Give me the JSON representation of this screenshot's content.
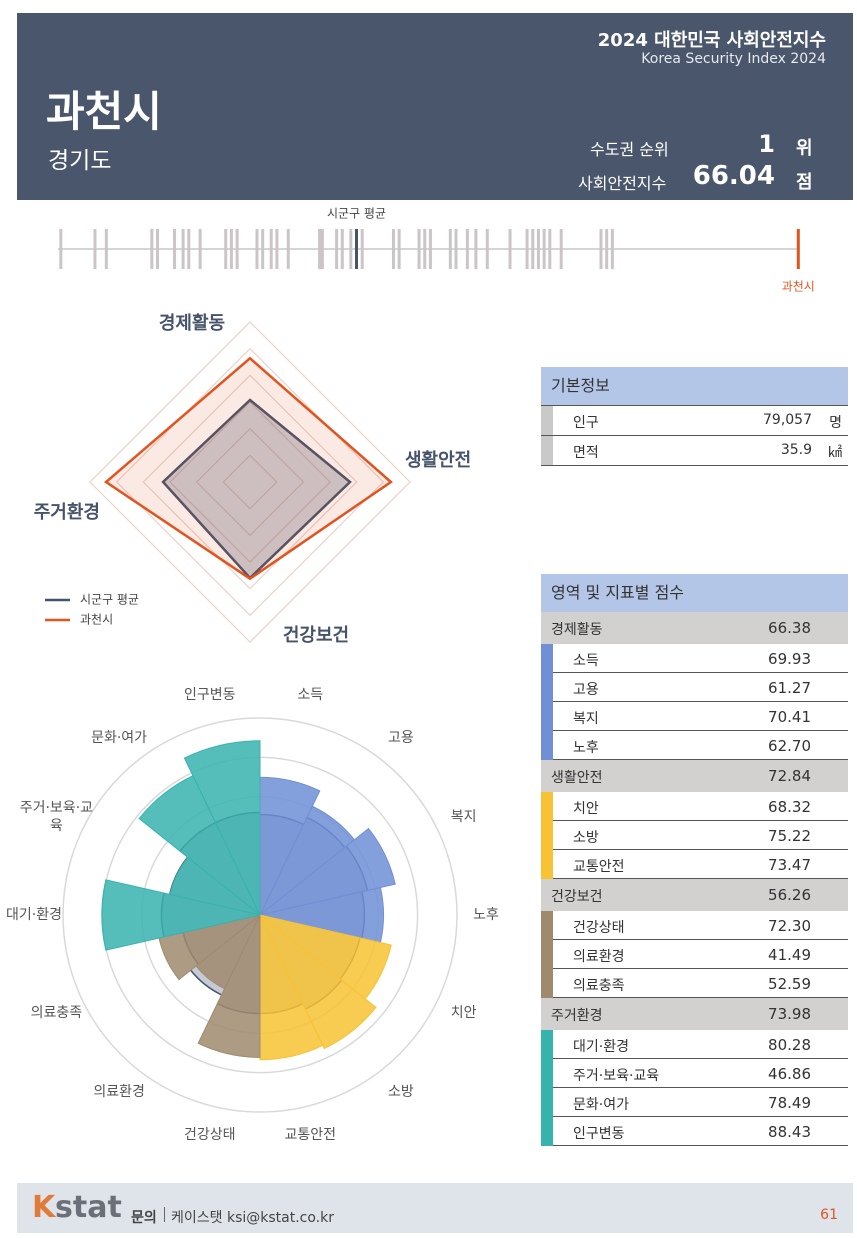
{
  "header": {
    "index_title": "2024 대한민국 사회안전지수",
    "index_subtitle": "Korea Security Index 2024",
    "city": "과천시",
    "province": "경기도",
    "rank_label": "수도권 순위",
    "rank": 1,
    "rank_unit": "위",
    "score_label": "사회안전지수",
    "score": 66.04,
    "score_unit": "점"
  },
  "ranking_strip": {
    "type": "strip",
    "xlim": [
      40,
      66.1
    ],
    "average_label": "시군구 평균",
    "average": 50.5,
    "average_color": "#46536b",
    "highlight_label": "과천시",
    "highlight": 66.04,
    "highlight_color": "#e2541f",
    "others_color": "#cbc5c8",
    "others": [
      40.1,
      41.3,
      41.7,
      43.3,
      43.5,
      44.1,
      44.4,
      44.6,
      45.0,
      45.9,
      46.1,
      46.3,
      47.0,
      47.2,
      47.5,
      47.7,
      48.1,
      49.2,
      49.3,
      49.8,
      50.0,
      50.3,
      50.7,
      51.8,
      52.0,
      52.7,
      52.9,
      53.1,
      53.8,
      54.0,
      54.4,
      54.7,
      55.1,
      55.9,
      56.5,
      56.7,
      56.9,
      57.1,
      57.3,
      57.7,
      59.1,
      59.3,
      59.5
    ]
  },
  "radar": {
    "type": "radar",
    "categories": [
      "경제활동",
      "생활안전",
      "건강보건",
      "주거환경"
    ],
    "rlim": [
      20,
      80
    ],
    "rticks": [
      20,
      30,
      40,
      50,
      60,
      70,
      80
    ],
    "series": [
      {
        "name": "시군구 평균",
        "color": "#46536b",
        "values": [
          50.75,
          57.5,
          56,
          52.6
        ]
      },
      {
        "name": "과천시",
        "color": "#e2541f",
        "values": [
          66.38,
          72.84,
          56.26,
          73.98
        ]
      }
    ]
  },
  "polar": {
    "type": "polar-bar",
    "categories": [
      "소득",
      "고용",
      "복지",
      "노후",
      "치안",
      "소방",
      "교통안전",
      "건강상태",
      "의료환경",
      "의료충족",
      "대기·환경",
      "주거·보육·교육",
      "문화·여가",
      "인구변동"
    ],
    "values": [
      69.93,
      61.27,
      70.41,
      62.7,
      68.32,
      75.22,
      73.47,
      72.3,
      41.49,
      52.59,
      80.28,
      46.86,
      78.49,
      88.43
    ],
    "colors": [
      "#6f8fd6",
      "#6f8fd6",
      "#6f8fd6",
      "#6f8fd6",
      "#f7c233",
      "#f7c233",
      "#f7c233",
      "#9f8a6e",
      "#9f8a6e",
      "#9f8a6e",
      "#37b3ae",
      "#37b3ae",
      "#37b3ae",
      "#37b3ae"
    ],
    "average": [
      51,
      55,
      56,
      53,
      52,
      53,
      50,
      50,
      45,
      40,
      50,
      47,
      52,
      52
    ],
    "average_color": "#46536b",
    "rlim": [
      0,
      100
    ],
    "rticks": [
      20,
      40,
      60,
      80,
      100
    ]
  },
  "basic_info": {
    "title": "기본정보",
    "rows": [
      {
        "label": "인구",
        "value": "79,057",
        "unit": "명"
      },
      {
        "label": "면적",
        "value": "35.9",
        "unit": "㎢"
      }
    ]
  },
  "scores": {
    "title": "영역 및 지표별 점수",
    "groups": [
      {
        "name": "경제활동",
        "score": "66.38",
        "color": "#6f8fd6",
        "items": [
          {
            "name": "소득",
            "score": "69.93"
          },
          {
            "name": "고용",
            "score": "61.27"
          },
          {
            "name": "복지",
            "score": "70.41"
          },
          {
            "name": "노후",
            "score": "62.70"
          }
        ]
      },
      {
        "name": "생활안전",
        "score": "72.84",
        "color": "#f7c233",
        "items": [
          {
            "name": "치안",
            "score": "68.32"
          },
          {
            "name": "소방",
            "score": "75.22"
          },
          {
            "name": "교통안전",
            "score": "73.47"
          }
        ]
      },
      {
        "name": "건강보건",
        "score": "56.26",
        "color": "#9f8a6e",
        "items": [
          {
            "name": "건강상태",
            "score": "72.30"
          },
          {
            "name": "의료환경",
            "score": "41.49"
          },
          {
            "name": "의료충족",
            "score": "52.59"
          }
        ]
      },
      {
        "name": "주거환경",
        "score": "73.98",
        "color": "#37b3ae",
        "items": [
          {
            "name": "대기·환경",
            "score": "80.28"
          },
          {
            "name": "주거·보육·교육",
            "score": "46.86"
          },
          {
            "name": "문화·여가",
            "score": "78.49"
          },
          {
            "name": "인구변동",
            "score": "88.43"
          }
        ]
      }
    ]
  },
  "footer": {
    "logo_mark": "K",
    "logo_text": "stat",
    "contact_label": "문의",
    "contact": "케이스탯 ksi@kstat.co.kr",
    "page": 61
  }
}
